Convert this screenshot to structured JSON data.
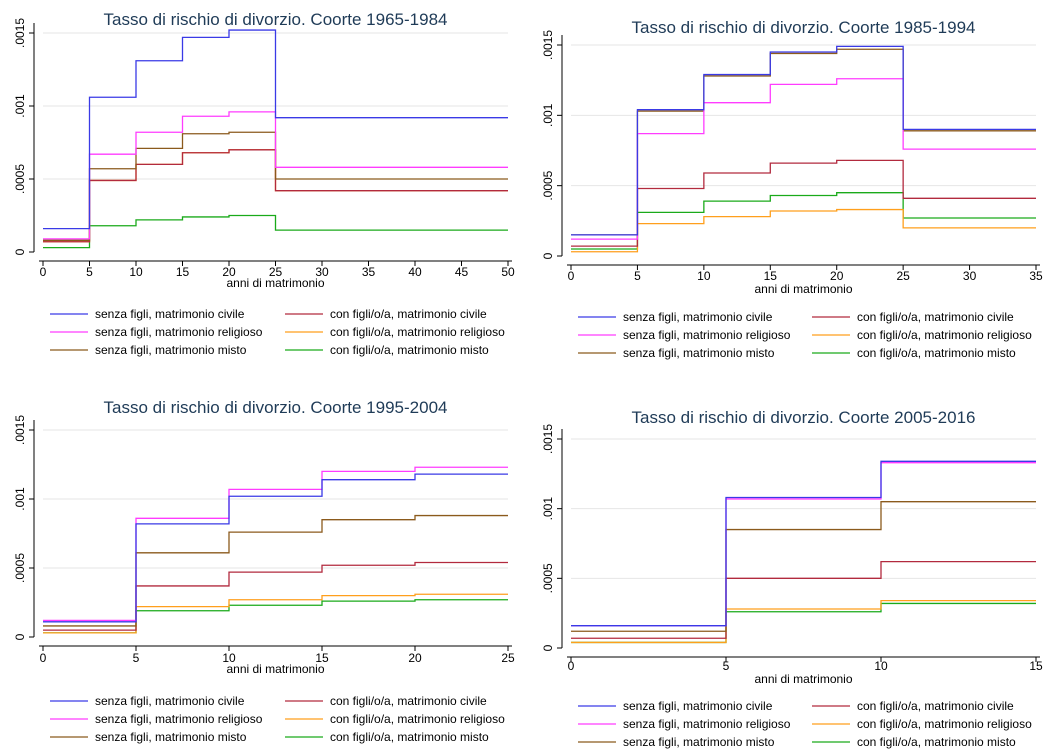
{
  "series_colors": {
    "senza_civile": "#3a3ae6",
    "senza_religioso": "#ff3cff",
    "senza_misto": "#8b5a1c",
    "con_civile": "#b22a3e",
    "con_religioso": "#ff9f1c",
    "con_misto": "#1aaa1a"
  },
  "chart_data": [
    {
      "type": "line",
      "title": "Tasso di rischio di divorzio. Coorte 1965-1984",
      "xlabel": "anni di matrimonio",
      "ylabel": "",
      "xlim": [
        0,
        50
      ],
      "ylim": [
        0,
        0.0015
      ],
      "xticks": [
        0,
        5,
        10,
        15,
        20,
        25,
        30,
        35,
        40,
        45,
        50
      ],
      "yticks": [
        0,
        0.0005,
        0.001,
        0.0015
      ],
      "ytick_labels": [
        "0",
        ".0005",
        ".001",
        ".0015"
      ],
      "legend_position": "bottom",
      "x_breaks": [
        0,
        5,
        10,
        15,
        20,
        25,
        50
      ],
      "series": [
        {
          "key": "senza_civile",
          "name": "senza figli, matrimonio civile",
          "values": [
            0.00016,
            0.00106,
            0.00131,
            0.00147,
            0.00152,
            0.00092
          ]
        },
        {
          "key": "senza_religioso",
          "name": "senza figli, matrimonio religioso",
          "values": [
            9e-05,
            0.00067,
            0.00082,
            0.00093,
            0.00096,
            0.00058
          ]
        },
        {
          "key": "senza_misto",
          "name": "senza figli, matrimonio misto",
          "values": [
            8e-05,
            0.00057,
            0.00071,
            0.00081,
            0.00082,
            0.0005
          ]
        },
        {
          "key": "con_civile",
          "name": "con figli/o/a, matrimonio civile",
          "values": [
            7e-05,
            0.00049,
            0.0006,
            0.00068,
            0.0007,
            0.00042
          ]
        },
        {
          "key": "con_religioso",
          "name": "con figli/o/a, matrimonio religioso",
          "values": [
            7e-05,
            0.00049,
            0.0006,
            0.00068,
            0.0007,
            0.00042
          ]
        },
        {
          "key": "con_misto",
          "name": "con figli/o/a, matrimonio misto",
          "values": [
            3e-05,
            0.00018,
            0.00022,
            0.00024,
            0.00025,
            0.00015
          ]
        }
      ]
    },
    {
      "type": "line",
      "title": "Tasso di rischio di divorzio. Coorte 1985-1994",
      "xlabel": "anni di matrimonio",
      "ylabel": "",
      "xlim": [
        0,
        35
      ],
      "ylim": [
        0,
        0.0015
      ],
      "xticks": [
        0,
        5,
        10,
        15,
        20,
        25,
        30,
        35
      ],
      "yticks": [
        0,
        0.0005,
        0.001,
        0.0015
      ],
      "ytick_labels": [
        "0",
        ".0005",
        ".001",
        ".0015"
      ],
      "legend_position": "bottom",
      "x_breaks": [
        0,
        5,
        10,
        15,
        20,
        25,
        35
      ],
      "series": [
        {
          "key": "senza_civile",
          "name": "senza figli, matrimonio civile",
          "values": [
            0.00015,
            0.00104,
            0.00129,
            0.00145,
            0.00149,
            0.0009
          ]
        },
        {
          "key": "senza_religioso",
          "name": "senza figli, matrimonio religioso",
          "values": [
            0.00012,
            0.00087,
            0.00109,
            0.00122,
            0.00126,
            0.00076
          ]
        },
        {
          "key": "senza_misto",
          "name": "senza figli, matrimonio misto",
          "values": [
            0.00015,
            0.00103,
            0.00128,
            0.00144,
            0.00147,
            0.00089
          ]
        },
        {
          "key": "con_civile",
          "name": "con figli/o/a, matrimonio civile",
          "values": [
            7e-05,
            0.00048,
            0.00059,
            0.00066,
            0.00068,
            0.00041
          ]
        },
        {
          "key": "con_religioso",
          "name": "con figli/o/a, matrimonio religioso",
          "values": [
            3e-05,
            0.00023,
            0.00028,
            0.00032,
            0.00033,
            0.0002
          ]
        },
        {
          "key": "con_misto",
          "name": "con figli/o/a, matrimonio misto",
          "values": [
            5e-05,
            0.00031,
            0.00039,
            0.00043,
            0.00045,
            0.00027
          ]
        }
      ]
    },
    {
      "type": "line",
      "title": "Tasso di rischio di divorzio. Coorte 1995-2004",
      "xlabel": "anni di matrimonio",
      "ylabel": "",
      "xlim": [
        0,
        25
      ],
      "ylim": [
        0,
        0.0015
      ],
      "xticks": [
        0,
        5,
        10,
        15,
        20,
        25
      ],
      "yticks": [
        0,
        0.0005,
        0.001,
        0.0015
      ],
      "ytick_labels": [
        "0",
        ".0005",
        ".001",
        ".0015"
      ],
      "legend_position": "bottom",
      "x_breaks": [
        0,
        5,
        10,
        15,
        20,
        25
      ],
      "series": [
        {
          "key": "senza_civile",
          "name": "senza figli, matrimonio civile",
          "values": [
            0.00011,
            0.00082,
            0.00102,
            0.00114,
            0.00118
          ]
        },
        {
          "key": "senza_religioso",
          "name": "senza figli, matrimonio religioso",
          "values": [
            0.00012,
            0.00086,
            0.00107,
            0.0012,
            0.00123
          ]
        },
        {
          "key": "senza_misto",
          "name": "senza figli, matrimonio misto",
          "values": [
            8e-05,
            0.00061,
            0.00076,
            0.00085,
            0.00088
          ]
        },
        {
          "key": "con_civile",
          "name": "con figli/o/a, matrimonio civile",
          "values": [
            5e-05,
            0.00037,
            0.00047,
            0.00052,
            0.00054
          ]
        },
        {
          "key": "con_religioso",
          "name": "con figli/o/a, matrimonio religioso",
          "values": [
            3e-05,
            0.00022,
            0.00027,
            0.0003,
            0.00031
          ]
        },
        {
          "key": "con_misto",
          "name": "con figli/o/a, matrimonio misto",
          "values": [
            3e-05,
            0.00019,
            0.00023,
            0.00026,
            0.00027
          ]
        }
      ]
    },
    {
      "type": "line",
      "title": "Tasso di rischio di divorzio. Coorte 2005-2016",
      "xlabel": "anni di matrimonio",
      "ylabel": "",
      "xlim": [
        0,
        15
      ],
      "ylim": [
        0,
        0.0015
      ],
      "xticks": [
        0,
        5,
        10,
        15
      ],
      "yticks": [
        0,
        0.0005,
        0.001,
        0.0015
      ],
      "ytick_labels": [
        "0",
        ".0005",
        ".001",
        ".0015"
      ],
      "legend_position": "bottom",
      "x_breaks": [
        0,
        5,
        10,
        15
      ],
      "series": [
        {
          "key": "senza_civile",
          "name": "senza figli, matrimonio civile",
          "values": [
            0.00016,
            0.00108,
            0.00134
          ]
        },
        {
          "key": "senza_religioso",
          "name": "senza figli, matrimonio religioso",
          "values": [
            0.00016,
            0.00107,
            0.00133
          ]
        },
        {
          "key": "senza_misto",
          "name": "senza figli, matrimonio misto",
          "values": [
            0.00012,
            0.00085,
            0.00105
          ]
        },
        {
          "key": "con_civile",
          "name": "con figli/o/a, matrimonio civile",
          "values": [
            7e-05,
            0.0005,
            0.00062
          ]
        },
        {
          "key": "con_religioso",
          "name": "con figli/o/a, matrimonio religioso",
          "values": [
            4e-05,
            0.00028,
            0.00034
          ]
        },
        {
          "key": "con_misto",
          "name": "con figli/o/a, matrimonio misto",
          "values": [
            4e-05,
            0.00026,
            0.00032
          ]
        }
      ]
    }
  ]
}
